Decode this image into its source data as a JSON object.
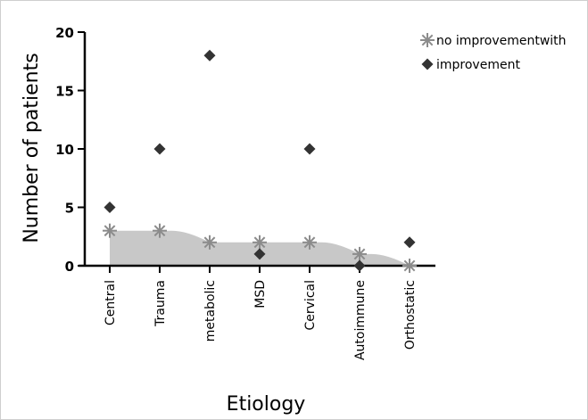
{
  "chart_data": {
    "type": "scatter",
    "title": "",
    "xlabel": "Etiology",
    "ylabel": "Number of patients",
    "categories": [
      "Central",
      "Trauma",
      "metabolic",
      "MSD",
      "Cervical",
      "Autoimmune",
      "Orthostatic"
    ],
    "ylim": [
      0,
      20
    ],
    "yticks": [
      0,
      5,
      10,
      15,
      20
    ],
    "grid": false,
    "legend_position": "top-right",
    "series": [
      {
        "name": "no improvementwith",
        "marker": "asterisk",
        "color": "#8c8c8c",
        "shaded_area": true,
        "area_color": "#c8c8c8",
        "values": [
          3,
          3,
          2,
          2,
          2,
          1,
          0
        ]
      },
      {
        "name": "improvement",
        "marker": "diamond",
        "color": "#333333",
        "values": [
          5,
          10,
          18,
          1,
          10,
          0,
          2
        ]
      }
    ]
  }
}
